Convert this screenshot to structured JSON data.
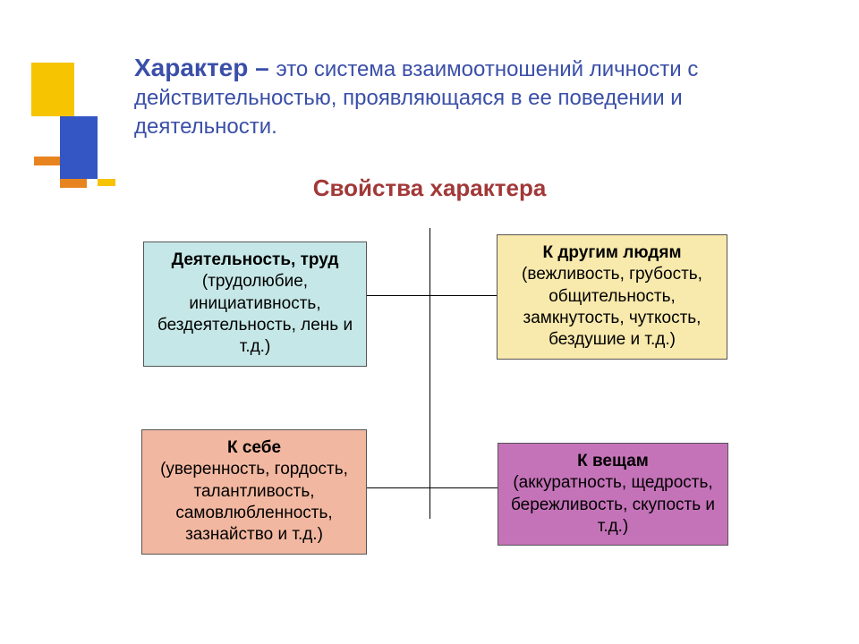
{
  "colors": {
    "header_text": "#3a4fa8",
    "subtitle_text": "#a23838",
    "box_text": "#000000",
    "deco_yellow": "#f6c400",
    "deco_orange": "#e8841f",
    "deco_blue": "#3356c4",
    "box_tl_bg": "#c6e7e7",
    "box_tr_bg": "#f8e9ac",
    "box_bl_bg": "#f2b7a0",
    "box_br_bg": "#c573b9"
  },
  "typography": {
    "header_title_size": 28,
    "header_body_size": 24,
    "subtitle_size": 26,
    "box_size": 19
  },
  "header": {
    "title": "Характер – ",
    "body": "это система взаимоотношений личности с действительностью, проявляющаяся в ее поведении и деятельности."
  },
  "subtitle": "Свойства характера",
  "boxes": {
    "tl": {
      "title": "Деятельность, труд",
      "body": "(трудолюбие, инициативность, бездеятельность, лень и т.д.)"
    },
    "tr": {
      "title": "К другим людям",
      "body": "(вежливость, грубость, общительность, замкнутость, чуткость, бездушие и т.д.)"
    },
    "bl": {
      "title": "К себе",
      "body": "(уверенность, гордость, талантливость, самовлюбленность, зазнайство и т.д.)"
    },
    "br": {
      "title": "К вещам",
      "body": "(аккуратность, щедрость, бережливость, скупость   и т.д.)"
    }
  }
}
